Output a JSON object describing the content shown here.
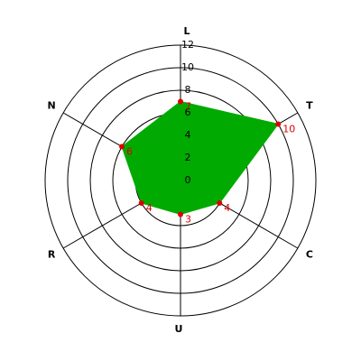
{
  "chart_data": {
    "type": "radar",
    "categories": [
      "L",
      "T",
      "C",
      "U",
      "R",
      "N"
    ],
    "values": [
      7,
      10,
      4,
      3,
      4,
      6
    ],
    "color": "#00aa00",
    "marker_color": "#dd0000",
    "label_color": "#dd0000",
    "ylim": [
      0,
      12
    ],
    "yticks": [
      0,
      2,
      4,
      6,
      8,
      10,
      12
    ],
    "grid": true
  }
}
